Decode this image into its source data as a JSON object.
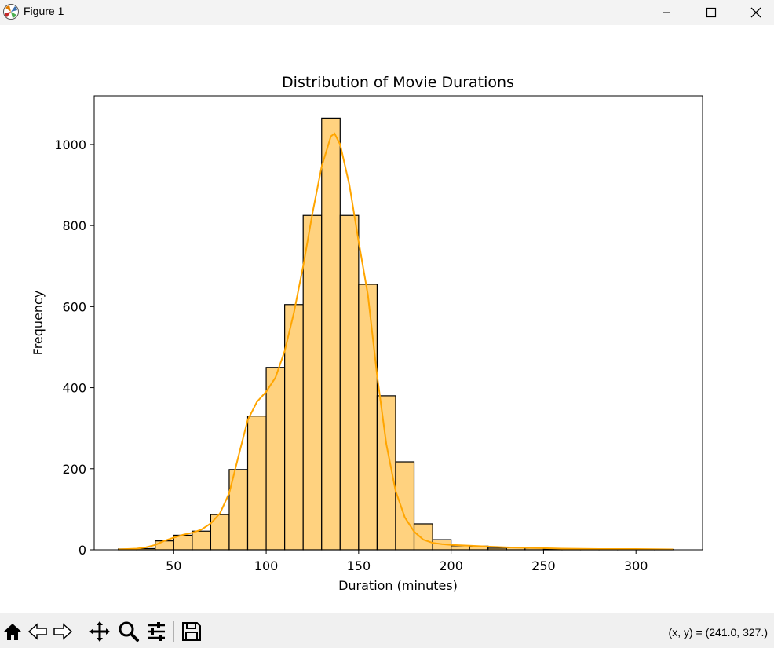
{
  "window": {
    "title": "Figure 1"
  },
  "toolbar": {
    "buttons": [
      "home-icon",
      "back-icon",
      "forward-icon",
      "pan-icon",
      "zoom-icon",
      "configure-subplots-icon",
      "save-icon"
    ],
    "coords": "(x, y) = (241.0, 327.)"
  },
  "colors": {
    "bar_fill": "#ffd27f",
    "bar_edge": "#000000",
    "kde": "#ffa500"
  },
  "chart_data": {
    "type": "bar",
    "title": "Distribution of Movie Durations",
    "xlabel": "Duration (minutes)",
    "ylabel": "Frequency",
    "xlim": [
      7,
      336
    ],
    "ylim": [
      0,
      1120
    ],
    "xticks": [
      50,
      100,
      150,
      200,
      250,
      300
    ],
    "yticks": [
      0,
      200,
      400,
      600,
      800,
      1000
    ],
    "grid": false,
    "bins": [
      {
        "x0": 20,
        "x1": 30,
        "count": 2
      },
      {
        "x0": 30,
        "x1": 40,
        "count": 3
      },
      {
        "x0": 40,
        "x1": 50,
        "count": 22
      },
      {
        "x0": 50,
        "x1": 60,
        "count": 36
      },
      {
        "x0": 60,
        "x1": 70,
        "count": 46
      },
      {
        "x0": 70,
        "x1": 80,
        "count": 87
      },
      {
        "x0": 80,
        "x1": 90,
        "count": 198
      },
      {
        "x0": 90,
        "x1": 100,
        "count": 330
      },
      {
        "x0": 100,
        "x1": 110,
        "count": 450
      },
      {
        "x0": 110,
        "x1": 120,
        "count": 605
      },
      {
        "x0": 120,
        "x1": 130,
        "count": 825
      },
      {
        "x0": 130,
        "x1": 140,
        "count": 1065
      },
      {
        "x0": 140,
        "x1": 150,
        "count": 825
      },
      {
        "x0": 150,
        "x1": 160,
        "count": 655
      },
      {
        "x0": 160,
        "x1": 170,
        "count": 380
      },
      {
        "x0": 170,
        "x1": 180,
        "count": 217
      },
      {
        "x0": 180,
        "x1": 190,
        "count": 64
      },
      {
        "x0": 190,
        "x1": 200,
        "count": 25
      },
      {
        "x0": 200,
        "x1": 210,
        "count": 10
      },
      {
        "x0": 210,
        "x1": 220,
        "count": 9
      },
      {
        "x0": 220,
        "x1": 230,
        "count": 4
      },
      {
        "x0": 230,
        "x1": 240,
        "count": 5
      },
      {
        "x0": 240,
        "x1": 250,
        "count": 4
      },
      {
        "x0": 250,
        "x1": 260,
        "count": 2
      },
      {
        "x0": 260,
        "x1": 270,
        "count": 2
      },
      {
        "x0": 270,
        "x1": 280,
        "count": 1
      },
      {
        "x0": 280,
        "x1": 290,
        "count": 1
      },
      {
        "x0": 290,
        "x1": 300,
        "count": 2
      },
      {
        "x0": 300,
        "x1": 310,
        "count": 1
      },
      {
        "x0": 310,
        "x1": 320,
        "count": 1
      }
    ],
    "kde": {
      "x": [
        20,
        30,
        35,
        40,
        45,
        50,
        55,
        60,
        65,
        70,
        75,
        80,
        85,
        90,
        95,
        100,
        105,
        110,
        115,
        120,
        125,
        130,
        135,
        137,
        140,
        145,
        150,
        155,
        160,
        165,
        170,
        175,
        180,
        185,
        190,
        195,
        200,
        210,
        220,
        230,
        240,
        250,
        260,
        280,
        300,
        320
      ],
      "y": [
        1,
        3,
        6,
        12,
        22,
        30,
        37,
        42,
        50,
        65,
        90,
        140,
        230,
        320,
        365,
        390,
        425,
        490,
        585,
        700,
        830,
        945,
        1020,
        1027,
        1000,
        900,
        760,
        630,
        430,
        260,
        145,
        80,
        45,
        25,
        17,
        14,
        12,
        10,
        8,
        6,
        5,
        4,
        3,
        2,
        2,
        1
      ]
    }
  }
}
